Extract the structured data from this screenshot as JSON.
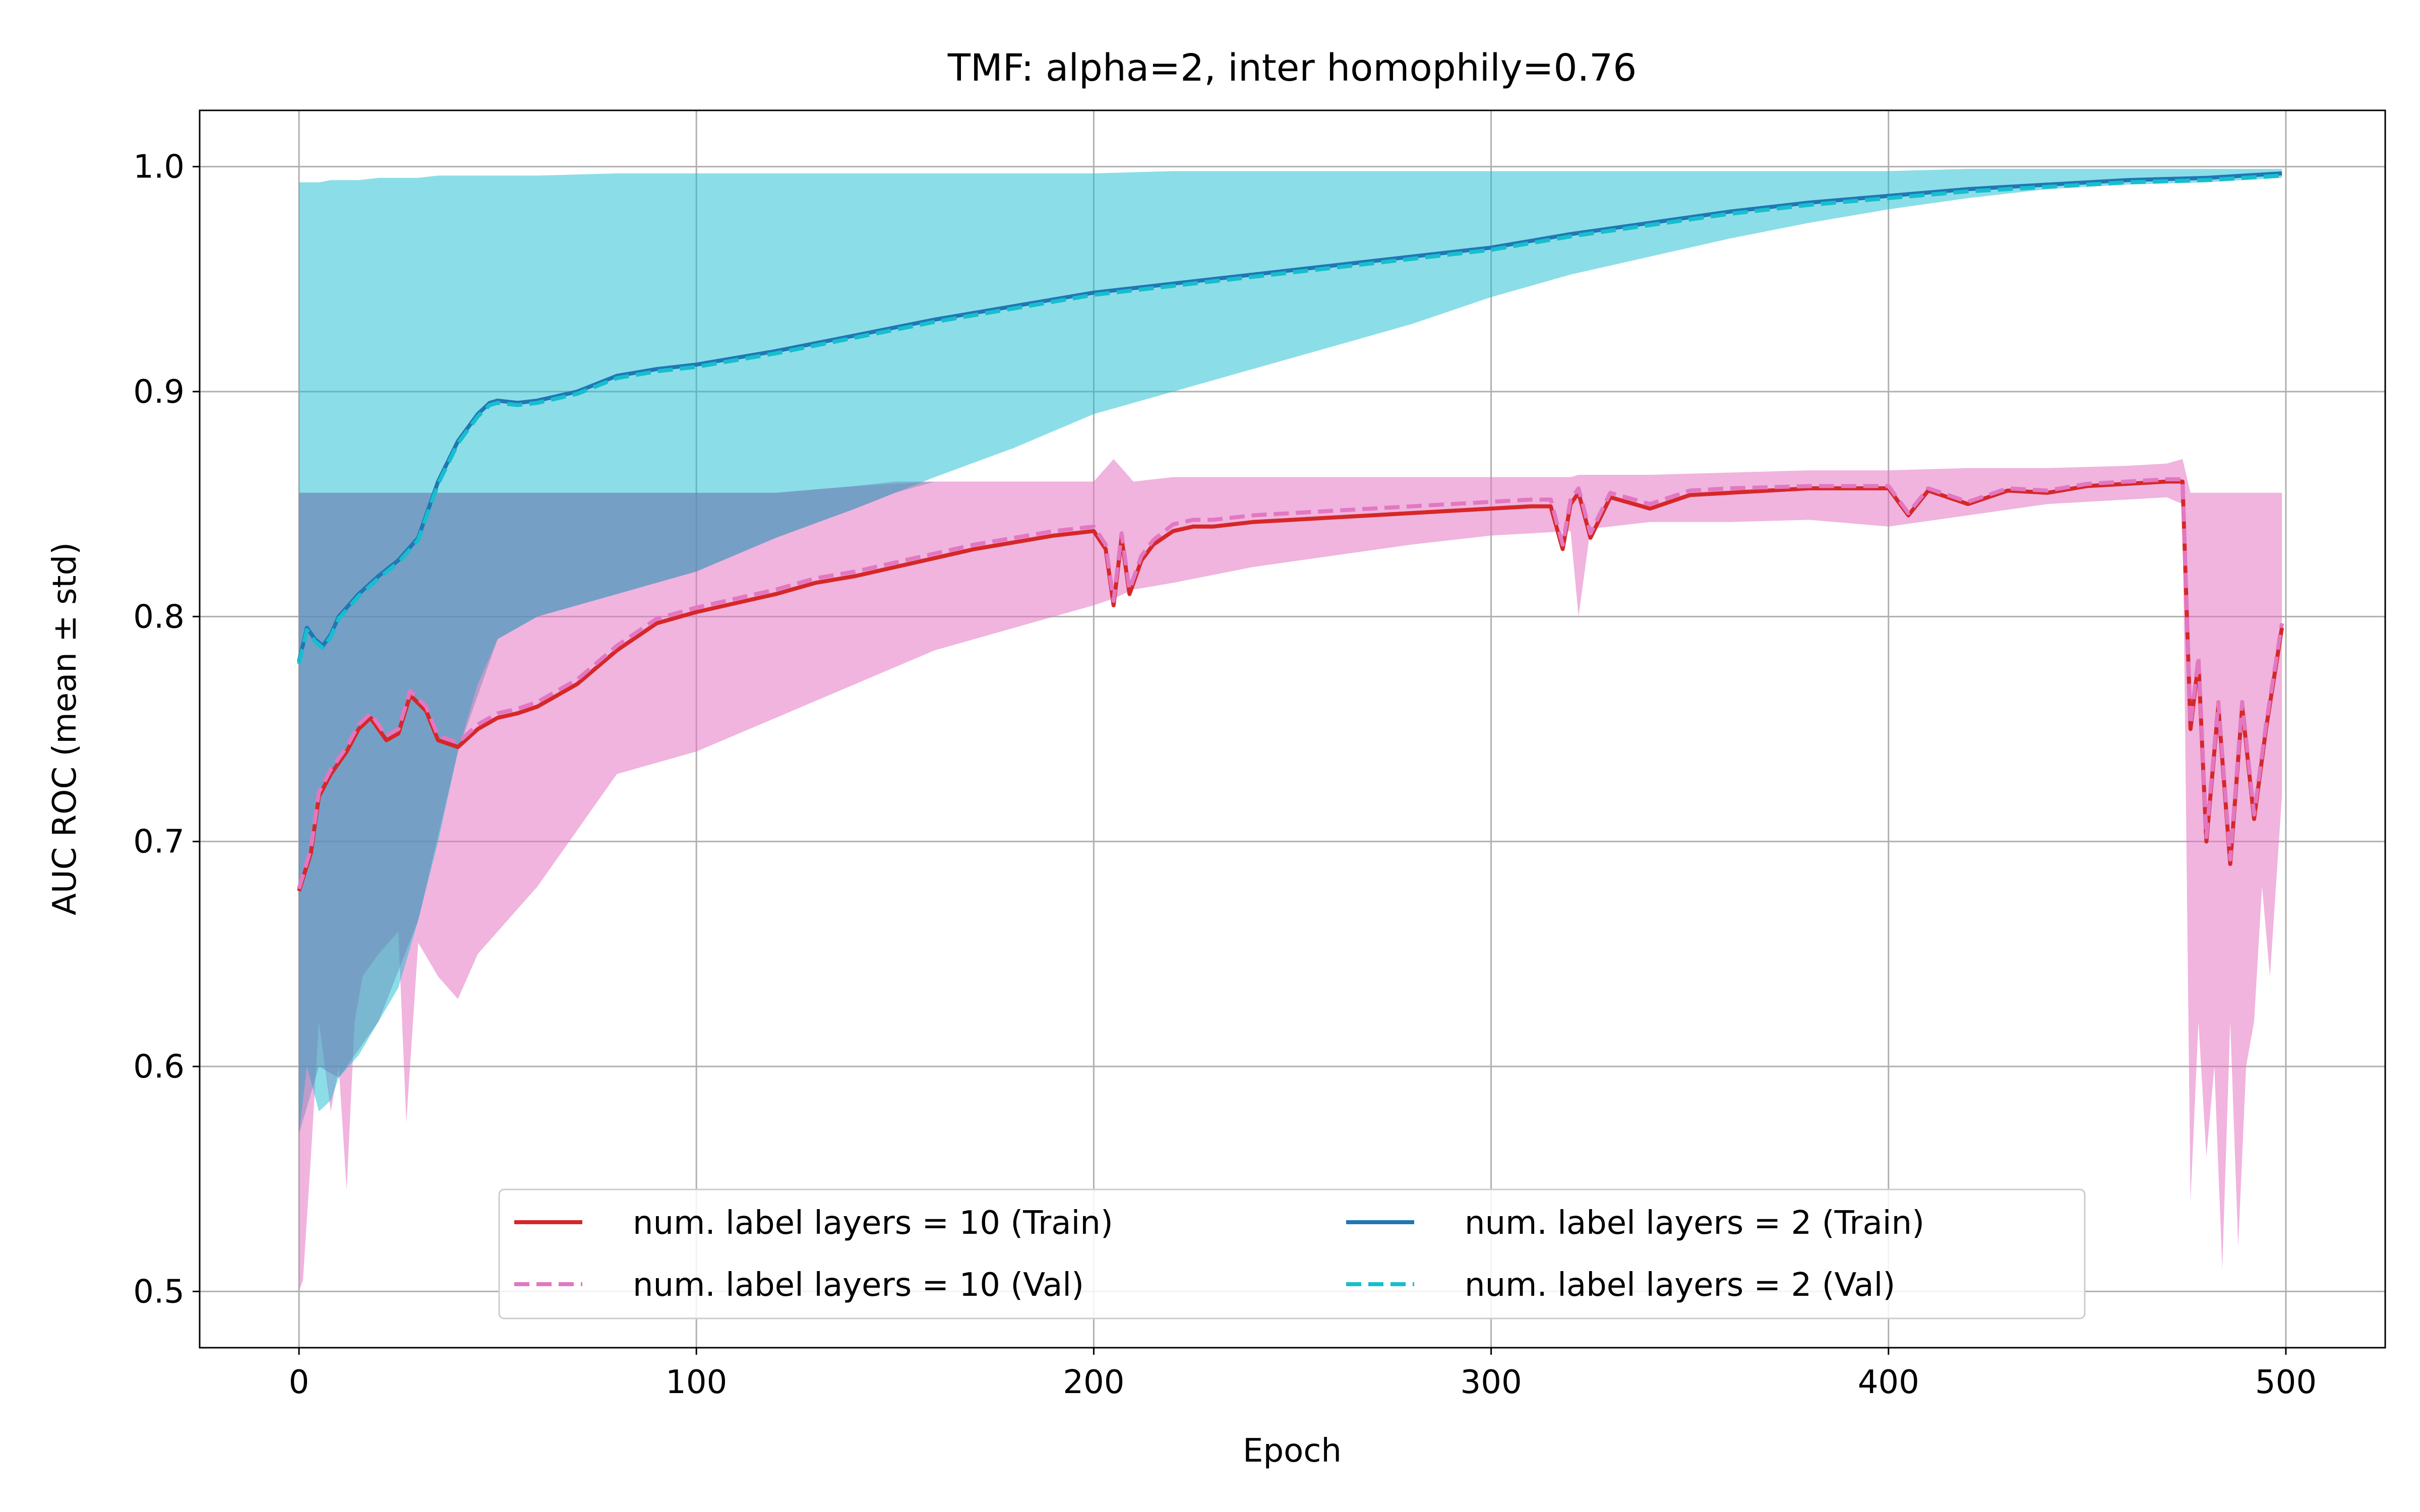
{
  "chart_data": {
    "type": "line",
    "title": "TMF: alpha=2, inter homophily=0.76",
    "xlabel": "Epoch",
    "ylabel": "AUC ROC (mean ± std)",
    "xlim": [
      -25,
      525
    ],
    "ylim": [
      0.475,
      1.025
    ],
    "xticks": [
      0,
      100,
      200,
      300,
      400,
      500
    ],
    "yticks": [
      0.5,
      0.6,
      0.7,
      0.8,
      0.9,
      1.0
    ],
    "xtick_labels": [
      "0",
      "100",
      "200",
      "300",
      "400",
      "500"
    ],
    "ytick_labels": [
      "0.5",
      "0.6",
      "0.7",
      "0.8",
      "0.9",
      "1.0"
    ],
    "grid": true,
    "legend": {
      "placement": "bottom-center",
      "columns": 2
    },
    "series": [
      {
        "name": "num. label layers = 10 (Train)",
        "color": "#d62728",
        "style": "solid",
        "x": [
          0,
          3,
          5,
          8,
          12,
          15,
          18,
          22,
          25,
          28,
          32,
          35,
          40,
          45,
          50,
          55,
          60,
          70,
          80,
          90,
          100,
          110,
          120,
          130,
          140,
          150,
          160,
          170,
          180,
          190,
          200,
          203,
          205,
          207,
          209,
          212,
          215,
          220,
          225,
          230,
          240,
          250,
          260,
          270,
          280,
          290,
          300,
          310,
          315,
          318,
          320,
          322,
          325,
          330,
          340,
          350,
          360,
          380,
          400,
          405,
          410,
          420,
          430,
          440,
          450,
          460,
          470,
          474,
          476,
          478,
          480,
          483,
          486,
          489,
          492,
          495,
          499
        ],
        "y": [
          0.678,
          0.695,
          0.72,
          0.73,
          0.74,
          0.75,
          0.755,
          0.745,
          0.748,
          0.765,
          0.758,
          0.745,
          0.742,
          0.75,
          0.755,
          0.757,
          0.76,
          0.77,
          0.785,
          0.797,
          0.802,
          0.806,
          0.81,
          0.815,
          0.818,
          0.822,
          0.826,
          0.83,
          0.833,
          0.836,
          0.838,
          0.83,
          0.805,
          0.835,
          0.81,
          0.825,
          0.832,
          0.838,
          0.84,
          0.84,
          0.842,
          0.843,
          0.844,
          0.845,
          0.846,
          0.847,
          0.848,
          0.849,
          0.849,
          0.83,
          0.85,
          0.855,
          0.835,
          0.853,
          0.848,
          0.854,
          0.855,
          0.857,
          0.857,
          0.845,
          0.856,
          0.85,
          0.856,
          0.855,
          0.858,
          0.859,
          0.86,
          0.86,
          0.75,
          0.78,
          0.7,
          0.76,
          0.69,
          0.76,
          0.71,
          0.75,
          0.795
        ]
      },
      {
        "name": "num. label layers = 10 (Val)",
        "color": "#e377c2",
        "style": "dashed",
        "x": [
          0,
          3,
          5,
          8,
          12,
          15,
          18,
          22,
          25,
          28,
          32,
          35,
          40,
          45,
          50,
          55,
          60,
          70,
          80,
          90,
          100,
          110,
          120,
          130,
          140,
          150,
          160,
          170,
          180,
          190,
          200,
          203,
          205,
          207,
          209,
          212,
          215,
          220,
          225,
          230,
          240,
          250,
          260,
          270,
          280,
          290,
          300,
          310,
          315,
          318,
          320,
          322,
          325,
          330,
          340,
          350,
          360,
          380,
          400,
          405,
          410,
          420,
          430,
          440,
          450,
          460,
          470,
          474,
          476,
          478,
          480,
          483,
          486,
          489,
          492,
          495,
          499
        ],
        "y": [
          0.679,
          0.697,
          0.722,
          0.732,
          0.742,
          0.752,
          0.757,
          0.747,
          0.75,
          0.767,
          0.76,
          0.747,
          0.744,
          0.752,
          0.757,
          0.759,
          0.762,
          0.772,
          0.787,
          0.799,
          0.804,
          0.808,
          0.812,
          0.817,
          0.82,
          0.824,
          0.828,
          0.832,
          0.835,
          0.838,
          0.84,
          0.832,
          0.807,
          0.837,
          0.812,
          0.827,
          0.834,
          0.841,
          0.843,
          0.843,
          0.845,
          0.846,
          0.847,
          0.848,
          0.849,
          0.85,
          0.851,
          0.852,
          0.852,
          0.832,
          0.852,
          0.857,
          0.837,
          0.855,
          0.85,
          0.856,
          0.857,
          0.858,
          0.858,
          0.846,
          0.857,
          0.851,
          0.857,
          0.856,
          0.859,
          0.86,
          0.861,
          0.861,
          0.752,
          0.782,
          0.702,
          0.762,
          0.692,
          0.762,
          0.712,
          0.752,
          0.797
        ]
      },
      {
        "name": "num. label layers = 2 (Train)",
        "color": "#1f77b4",
        "style": "solid",
        "x": [
          0,
          2,
          4,
          6,
          8,
          10,
          15,
          20,
          25,
          30,
          35,
          40,
          45,
          48,
          50,
          55,
          60,
          70,
          80,
          90,
          100,
          120,
          140,
          160,
          180,
          200,
          220,
          240,
          260,
          280,
          300,
          320,
          340,
          360,
          380,
          400,
          420,
          440,
          460,
          480,
          499
        ],
        "y": [
          0.78,
          0.795,
          0.79,
          0.787,
          0.792,
          0.8,
          0.81,
          0.818,
          0.825,
          0.835,
          0.86,
          0.878,
          0.89,
          0.895,
          0.896,
          0.895,
          0.896,
          0.9,
          0.907,
          0.91,
          0.912,
          0.918,
          0.925,
          0.932,
          0.938,
          0.944,
          0.948,
          0.952,
          0.956,
          0.96,
          0.964,
          0.97,
          0.975,
          0.98,
          0.984,
          0.987,
          0.99,
          0.992,
          0.994,
          0.995,
          0.997
        ]
      },
      {
        "name": "num. label layers = 2 (Val)",
        "color": "#17becf",
        "style": "dashed",
        "x": [
          0,
          2,
          4,
          6,
          8,
          10,
          15,
          20,
          25,
          30,
          35,
          40,
          45,
          48,
          50,
          55,
          60,
          70,
          80,
          90,
          100,
          120,
          140,
          160,
          180,
          200,
          220,
          240,
          260,
          280,
          300,
          320,
          340,
          360,
          380,
          400,
          420,
          440,
          460,
          480,
          499
        ],
        "y": [
          0.779,
          0.794,
          0.789,
          0.786,
          0.791,
          0.799,
          0.809,
          0.817,
          0.824,
          0.834,
          0.859,
          0.877,
          0.889,
          0.894,
          0.895,
          0.894,
          0.895,
          0.899,
          0.906,
          0.909,
          0.911,
          0.917,
          0.924,
          0.931,
          0.937,
          0.943,
          0.947,
          0.951,
          0.955,
          0.959,
          0.963,
          0.969,
          0.974,
          0.979,
          0.983,
          0.986,
          0.989,
          0.991,
          0.993,
          0.994,
          0.996
        ]
      }
    ],
    "bands": [
      {
        "color": "#e377c2",
        "opacity": 0.55,
        "x": [
          0,
          1,
          3,
          5,
          8,
          10,
          12,
          14,
          16,
          20,
          25,
          27,
          30,
          35,
          40,
          45,
          50,
          60,
          70,
          80,
          100,
          120,
          140,
          160,
          180,
          200,
          205,
          210,
          220,
          240,
          260,
          280,
          300,
          320,
          322,
          325,
          330,
          340,
          360,
          380,
          400,
          420,
          440,
          460,
          470,
          474,
          476,
          478,
          480,
          482,
          484,
          486,
          488,
          490,
          492,
          494,
          496,
          499
        ],
        "upper": [
          0.855,
          0.855,
          0.855,
          0.855,
          0.855,
          0.855,
          0.855,
          0.855,
          0.855,
          0.855,
          0.855,
          0.855,
          0.855,
          0.855,
          0.855,
          0.855,
          0.855,
          0.855,
          0.855,
          0.855,
          0.855,
          0.855,
          0.858,
          0.86,
          0.86,
          0.86,
          0.87,
          0.86,
          0.862,
          0.862,
          0.862,
          0.862,
          0.862,
          0.862,
          0.863,
          0.863,
          0.863,
          0.863,
          0.864,
          0.865,
          0.865,
          0.866,
          0.866,
          0.867,
          0.868,
          0.87,
          0.855,
          0.855,
          0.855,
          0.855,
          0.855,
          0.855,
          0.855,
          0.855,
          0.855,
          0.855,
          0.855,
          0.855
        ],
        "lower": [
          0.5,
          0.505,
          0.56,
          0.62,
          0.58,
          0.6,
          0.545,
          0.62,
          0.64,
          0.65,
          0.66,
          0.575,
          0.655,
          0.64,
          0.63,
          0.65,
          0.66,
          0.68,
          0.705,
          0.73,
          0.74,
          0.755,
          0.77,
          0.785,
          0.795,
          0.805,
          0.808,
          0.812,
          0.815,
          0.822,
          0.827,
          0.832,
          0.836,
          0.838,
          0.8,
          0.839,
          0.84,
          0.842,
          0.842,
          0.843,
          0.84,
          0.845,
          0.85,
          0.852,
          0.853,
          0.85,
          0.54,
          0.62,
          0.56,
          0.6,
          0.51,
          0.62,
          0.52,
          0.6,
          0.62,
          0.68,
          0.64,
          0.72
        ]
      },
      {
        "color": "#17becf",
        "opacity": 0.5,
        "x": [
          0,
          2,
          5,
          8,
          10,
          15,
          20,
          25,
          30,
          35,
          40,
          45,
          50,
          60,
          80,
          100,
          120,
          140,
          160,
          180,
          200,
          220,
          240,
          260,
          280,
          300,
          320,
          340,
          360,
          380,
          400,
          420,
          440,
          460,
          480,
          499
        ],
        "upper": [
          0.993,
          0.993,
          0.993,
          0.994,
          0.994,
          0.994,
          0.995,
          0.995,
          0.995,
          0.996,
          0.996,
          0.996,
          0.996,
          0.996,
          0.997,
          0.997,
          0.997,
          0.997,
          0.997,
          0.997,
          0.997,
          0.998,
          0.998,
          0.998,
          0.998,
          0.998,
          0.998,
          0.998,
          0.998,
          0.998,
          0.998,
          0.999,
          0.999,
          0.999,
          0.999,
          0.999
        ],
        "lower": [
          0.57,
          0.6,
          0.58,
          0.585,
          0.595,
          0.605,
          0.62,
          0.635,
          0.665,
          0.7,
          0.74,
          0.77,
          0.79,
          0.8,
          0.81,
          0.82,
          0.835,
          0.848,
          0.862,
          0.875,
          0.89,
          0.9,
          0.91,
          0.92,
          0.93,
          0.942,
          0.952,
          0.96,
          0.968,
          0.975,
          0.981,
          0.986,
          0.99,
          0.992,
          0.993,
          0.995
        ]
      },
      {
        "color": "#5b6fa5",
        "opacity": 0.35,
        "x": [
          0,
          5,
          10,
          20,
          30,
          40,
          50,
          60,
          80,
          100,
          120,
          140,
          150,
          160
        ],
        "upper": [
          0.855,
          0.855,
          0.855,
          0.855,
          0.855,
          0.855,
          0.855,
          0.855,
          0.855,
          0.855,
          0.855,
          0.858,
          0.86,
          0.86
        ],
        "lower": [
          0.57,
          0.6,
          0.595,
          0.62,
          0.665,
          0.74,
          0.79,
          0.8,
          0.81,
          0.82,
          0.835,
          0.848,
          0.855,
          0.86
        ]
      }
    ]
  }
}
